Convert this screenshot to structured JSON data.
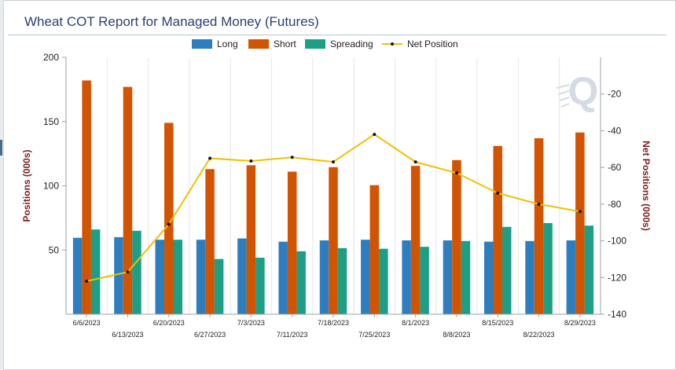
{
  "chart_data": {
    "type": "bar",
    "title": "Wheat COT Report for Managed Money (Futures)",
    "ylabel_left": "Positions (000s)",
    "ylabel_right": "Net Positions (000s)",
    "categories": [
      "6/6/2023",
      "6/13/2023",
      "6/20/2023",
      "6/27/2023",
      "7/3/2023",
      "7/11/2023",
      "7/18/2023",
      "7/25/2023",
      "8/1/2023",
      "8/8/2023",
      "8/15/2023",
      "8/22/2023",
      "8/29/2023"
    ],
    "left_axis": {
      "ylim": [
        0,
        200
      ],
      "ticks": [
        50,
        100,
        150,
        200
      ]
    },
    "right_axis": {
      "ylim": [
        -140,
        0
      ],
      "ticks": [
        -20,
        -40,
        -60,
        -80,
        -100,
        -120,
        -140
      ]
    },
    "series": [
      {
        "name": "Long",
        "type": "bar",
        "axis": "left",
        "color": "#2e7ebf",
        "values": [
          59.5,
          60,
          58,
          58,
          59,
          56.5,
          57.5,
          58,
          57.5,
          57.5,
          56.5,
          57,
          57.5
        ]
      },
      {
        "name": "Short",
        "type": "bar",
        "axis": "left",
        "color": "#d35400",
        "values": [
          182,
          177,
          149,
          113,
          116,
          111,
          114.5,
          100.5,
          115.5,
          120,
          131,
          137,
          141.5
        ]
      },
      {
        "name": "Spreading",
        "type": "bar",
        "axis": "left",
        "color": "#1f9e86",
        "values": [
          66,
          65,
          58,
          43,
          44,
          49,
          51.5,
          51,
          52.5,
          57,
          68,
          71,
          69
        ]
      },
      {
        "name": "Net Position",
        "type": "line",
        "axis": "right",
        "color": "#f0c000",
        "values": [
          -122,
          -117,
          -91,
          -55,
          -56.5,
          -54.5,
          -57,
          -42,
          -57,
          -63,
          -74,
          -80,
          -84
        ]
      }
    ],
    "grid": "vertical",
    "legend": "top-center"
  }
}
